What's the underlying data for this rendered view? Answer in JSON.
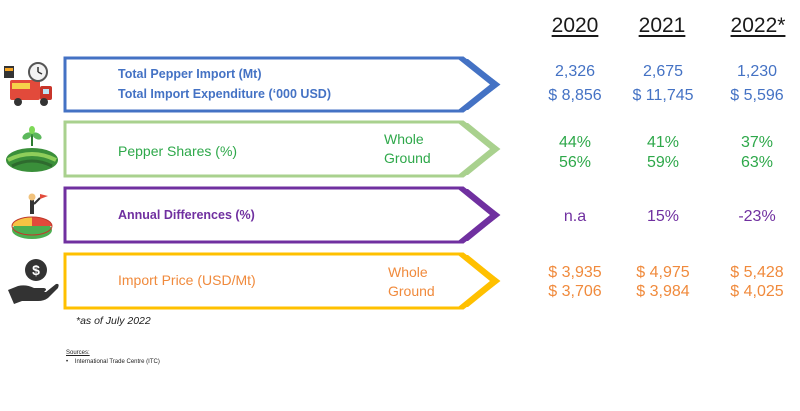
{
  "years": [
    "2020",
    "2021",
    "2022*"
  ],
  "rows": [
    {
      "id": "imports",
      "labels": [
        "Total Pepper Import (Mt)",
        "Total Import Expenditure (‘000 USD)"
      ],
      "color": "#4472c4",
      "line1": [
        "2,326",
        "2,675",
        "1,230"
      ],
      "line2": [
        "$ 8,856",
        "$ 11,745",
        "$ 5,596"
      ],
      "icon": "import-truck-icon"
    },
    {
      "id": "shares",
      "label": "Pepper Shares (%)",
      "sublabels": [
        "Whole",
        "Ground"
      ],
      "color": "#2ea84a",
      "line1": [
        "44%",
        "41%",
        "37%"
      ],
      "line2": [
        "56%",
        "59%",
        "63%"
      ],
      "icon": "farm-field-icon"
    },
    {
      "id": "differences",
      "label": "Annual Differences (%)",
      "color": "#7030a0",
      "line1": [
        "n.a",
        "15%",
        "-23%"
      ],
      "icon": "pie-chart-person-icon"
    },
    {
      "id": "price",
      "label": "Import Price (USD/Mt)",
      "sublabels": [
        "Whole",
        "Ground"
      ],
      "color": "#f08a3c",
      "line1": [
        "$ 3,935",
        "$ 4,975",
        "$ 5,428"
      ],
      "line2": [
        "$ 3,706",
        "$ 3,984",
        "$ 4,025"
      ],
      "icon": "money-hand-icon"
    }
  ],
  "footnote": "*as of July 2022",
  "sources": {
    "heading": "Sources:",
    "items": [
      "International Trade Centre (ITC)"
    ]
  }
}
